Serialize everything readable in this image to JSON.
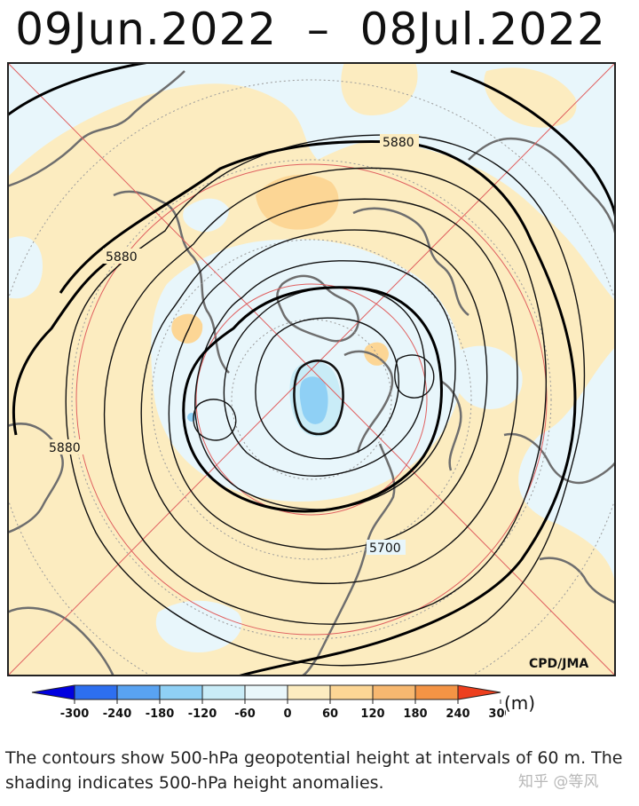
{
  "title": "09Jun.2022  –  08Jul.2022",
  "credit": "CPD/JMA",
  "contour_labels": [
    "5880",
    "5880",
    "5880",
    "5700"
  ],
  "colorbar": {
    "ticks": [
      "-300",
      "-240",
      "-180",
      "-120",
      "-60",
      "0",
      "60",
      "120",
      "180",
      "240",
      "300"
    ],
    "colors": [
      "#0000e0",
      "#2d6ff0",
      "#59a3f2",
      "#8fd0f5",
      "#c9ecf7",
      "#e9f7fb",
      "#fcecc0",
      "#fcd695",
      "#f7b870",
      "#f49445",
      "#ed3f1e"
    ],
    "unit": "(m)"
  },
  "caption": "The contours show 500-hPa geopotential height at intervals of 60 m. The shading indicates 500-hPa height anomalies.",
  "watermark": "知乎 @等风"
}
